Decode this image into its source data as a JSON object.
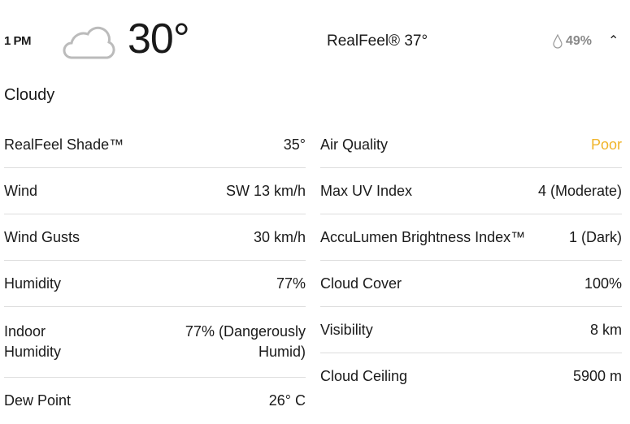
{
  "header": {
    "time": "1 PM",
    "icon": "cloud-icon",
    "temperature": "30°",
    "realfeel": "RealFeel® 37°",
    "precip_icon": "droplet-icon",
    "precipitation": "49%",
    "collapse_icon": "chevron-up-icon"
  },
  "phrase": "Cloudy",
  "colors": {
    "poor": "#f0b429"
  },
  "left": [
    {
      "label": "RealFeel Shade™",
      "value": "35°"
    },
    {
      "label": "Wind",
      "value": "SW 13 km/h"
    },
    {
      "label": "Wind Gusts",
      "value": "30 km/h"
    },
    {
      "label": "Humidity",
      "value": "77%"
    },
    {
      "label": "Indoor Humidity",
      "value": "77% (Dangerously Humid)"
    },
    {
      "label": "Dew Point",
      "value": "26° C"
    }
  ],
  "right": [
    {
      "label": "Air Quality",
      "value": "Poor"
    },
    {
      "label": "Max UV Index",
      "value": "4 (Moderate)"
    },
    {
      "label": "AccuLumen Brightness Index™",
      "value": "1 (Dark)"
    },
    {
      "label": "Cloud Cover",
      "value": "100%"
    },
    {
      "label": "Visibility",
      "value": "8 km"
    },
    {
      "label": "Cloud Ceiling",
      "value": "5900 m"
    }
  ]
}
